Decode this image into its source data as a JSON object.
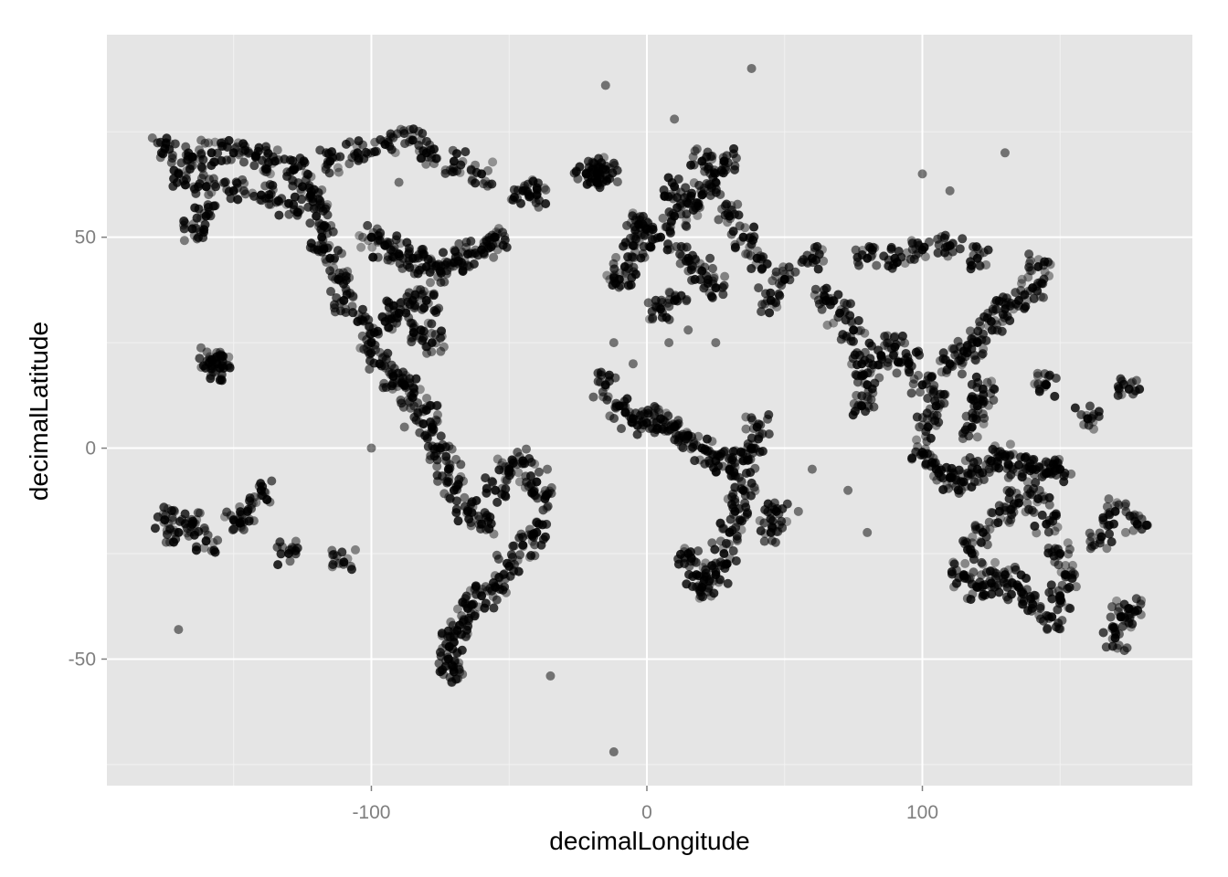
{
  "chart_data": {
    "type": "scatter",
    "title": "",
    "xlabel": "decimalLongitude",
    "ylabel": "decimalLatitude",
    "xlim": [
      -196,
      198
    ],
    "ylim": [
      -80,
      98
    ],
    "x_ticks": [
      -100,
      0,
      100
    ],
    "y_ticks": [
      -50,
      0,
      50
    ],
    "x_tick_labels": [
      "-100",
      "0",
      "100"
    ],
    "y_tick_labels": [
      "-50",
      "0",
      "50"
    ],
    "grid": true,
    "legend": "none",
    "point_color": "#000000",
    "point_alpha": 0.15,
    "colors": {
      "panel": "#e5e5e5",
      "grid_major": "#ffffff",
      "grid_minor": "#f2f2f2"
    },
    "series": [
      {
        "regions": [
          {
            "area": "north-america-west",
            "points": [
              [
                -175,
                71
              ],
              [
                -165,
                69
              ],
              [
                -158,
                70
              ],
              [
                -150,
                70
              ],
              [
                -142,
                69
              ],
              [
                -135,
                68
              ],
              [
                -128,
                66
              ],
              [
                -122,
                60
              ],
              [
                -120,
                55
              ],
              [
                -118,
                50
              ],
              [
                -115,
                45
              ],
              [
                -112,
                40
              ],
              [
                -110,
                35
              ],
              [
                -105,
                30
              ],
              [
                -100,
                25
              ],
              [
                -97,
                20
              ],
              [
                -92,
                17
              ],
              [
                -88,
                15
              ],
              [
                -85,
                12
              ],
              [
                -80,
                9
              ]
            ]
          },
          {
            "area": "north-america-east",
            "points": [
              [
                -100,
                50
              ],
              [
                -95,
                48
              ],
              [
                -90,
                46
              ],
              [
                -85,
                45
              ],
              [
                -80,
                43
              ],
              [
                -75,
                42
              ],
              [
                -70,
                44
              ],
              [
                -65,
                46
              ],
              [
                -60,
                47
              ],
              [
                -55,
                50
              ],
              [
                -85,
                35
              ],
              [
                -80,
                35
              ],
              [
                -90,
                32
              ],
              [
                -95,
                30
              ],
              [
                -82,
                28
              ],
              [
                -78,
                25
              ]
            ]
          },
          {
            "area": "alaska-and-arctic",
            "points": [
              [
                -170,
                65
              ],
              [
                -160,
                62
              ],
              [
                -150,
                61
              ],
              [
                -140,
                60
              ],
              [
                -130,
                58
              ],
              [
                -125,
                62
              ],
              [
                -115,
                68
              ],
              [
                -105,
                70
              ],
              [
                -95,
                72
              ],
              [
                -85,
                73
              ],
              [
                -80,
                70
              ],
              [
                -70,
                68
              ],
              [
                -60,
                65
              ],
              [
                -160,
                55
              ],
              [
                -165,
                52
              ]
            ]
          },
          {
            "area": "south-america",
            "points": [
              [
                -78,
                5
              ],
              [
                -75,
                0
              ],
              [
                -72,
                -5
              ],
              [
                -70,
                -10
              ],
              [
                -65,
                -15
              ],
              [
                -60,
                -18
              ],
              [
                -55,
                -10
              ],
              [
                -50,
                -5
              ],
              [
                -45,
                -3
              ],
              [
                -40,
                -8
              ],
              [
                -37,
                -12
              ],
              [
                -40,
                -20
              ],
              [
                -45,
                -23
              ],
              [
                -50,
                -28
              ],
              [
                -55,
                -33
              ],
              [
                -60,
                -35
              ],
              [
                -65,
                -38
              ],
              [
                -68,
                -42
              ],
              [
                -70,
                -46
              ],
              [
                -72,
                -50
              ],
              [
                -70,
                -53
              ]
            ]
          },
          {
            "area": "europe",
            "points": [
              [
                -10,
                40
              ],
              [
                -8,
                43
              ],
              [
                -5,
                48
              ],
              [
                -3,
                53
              ],
              [
                0,
                52
              ],
              [
                5,
                50
              ],
              [
                10,
                55
              ],
              [
                15,
                58
              ],
              [
                20,
                60
              ],
              [
                25,
                63
              ],
              [
                28,
                68
              ],
              [
                20,
                68
              ],
              [
                10,
                62
              ],
              [
                30,
                55
              ],
              [
                35,
                50
              ],
              [
                40,
                45
              ],
              [
                15,
                45
              ],
              [
                20,
                42
              ],
              [
                25,
                38
              ]
            ]
          },
          {
            "area": "africa",
            "points": [
              [
                -15,
                15
              ],
              [
                -10,
                10
              ],
              [
                -5,
                7
              ],
              [
                0,
                6
              ],
              [
                5,
                7
              ],
              [
                10,
                5
              ],
              [
                15,
                3
              ],
              [
                20,
                0
              ],
              [
                25,
                -3
              ],
              [
                30,
                -5
              ],
              [
                35,
                -3
              ],
              [
                38,
                0
              ],
              [
                40,
                5
              ],
              [
                35,
                -10
              ],
              [
                32,
                -15
              ],
              [
                30,
                -20
              ],
              [
                28,
                -25
              ],
              [
                25,
                -30
              ],
              [
                20,
                -33
              ],
              [
                18,
                -30
              ],
              [
                15,
                -25
              ],
              [
                45,
                -20
              ],
              [
                47,
                -15
              ],
              [
                5,
                33
              ],
              [
                10,
                35
              ]
            ]
          },
          {
            "area": "asia",
            "points": [
              [
                65,
                35
              ],
              [
                70,
                32
              ],
              [
                75,
                28
              ],
              [
                78,
                20
              ],
              [
                80,
                15
              ],
              [
                78,
                10
              ],
              [
                85,
                22
              ],
              [
                90,
                24
              ],
              [
                95,
                20
              ],
              [
                100,
                15
              ],
              [
                102,
                5
              ],
              [
                105,
                10
              ],
              [
                110,
                20
              ],
              [
                115,
                23
              ],
              [
                120,
                25
              ],
              [
                125,
                30
              ],
              [
                130,
                33
              ],
              [
                135,
                35
              ],
              [
                140,
                38
              ],
              [
                142,
                43
              ],
              [
                80,
                45
              ],
              [
                90,
                45
              ],
              [
                100,
                47
              ],
              [
                110,
                48
              ],
              [
                120,
                45
              ],
              [
                60,
                45
              ],
              [
                50,
                40
              ],
              [
                45,
                35
              ]
            ]
          },
          {
            "area": "southeast-asia",
            "points": [
              [
                100,
                -1
              ],
              [
                105,
                -5
              ],
              [
                110,
                -7
              ],
              [
                115,
                -8
              ],
              [
                120,
                -5
              ],
              [
                125,
                -3
              ],
              [
                130,
                -2
              ],
              [
                135,
                -4
              ],
              [
                140,
                -5
              ],
              [
                145,
                -6
              ],
              [
                150,
                -5
              ],
              [
                120,
                10
              ],
              [
                122,
                14
              ],
              [
                118,
                5
              ]
            ]
          },
          {
            "area": "australia-nz",
            "points": [
              [
                115,
                -30
              ],
              [
                118,
                -25
              ],
              [
                122,
                -20
              ],
              [
                128,
                -15
              ],
              [
                135,
                -13
              ],
              [
                142,
                -12
              ],
              [
                145,
                -18
              ],
              [
                150,
                -25
              ],
              [
                152,
                -30
              ],
              [
                150,
                -35
              ],
              [
                147,
                -40
              ],
              [
                140,
                -37
              ],
              [
                135,
                -33
              ],
              [
                130,
                -30
              ],
              [
                125,
                -32
              ],
              [
                120,
                -33
              ],
              [
                172,
                -40
              ],
              [
                170,
                -45
              ],
              [
                175,
                -38
              ]
            ]
          },
          {
            "area": "iceland-greenland",
            "points": [
              [
                -22,
                65
              ],
              [
                -20,
                64
              ],
              [
                -18,
                65
              ],
              [
                -15,
                66
              ],
              [
                -40,
                60
              ],
              [
                -45,
                61
              ]
            ]
          },
          {
            "area": "pacific-islands",
            "points": [
              [
                -158,
                21
              ],
              [
                -156,
                20
              ],
              [
                -155,
                19
              ],
              [
                -175,
                -17
              ],
              [
                -170,
                -20
              ],
              [
                -165,
                -18
              ],
              [
                -160,
                -22
              ],
              [
                -150,
                -17
              ],
              [
                -145,
                -15
              ],
              [
                -140,
                -10
              ],
              [
                -130,
                -25
              ],
              [
                -110,
                -27
              ],
              [
                178,
                -18
              ],
              [
                170,
                -15
              ],
              [
                165,
                -21
              ],
              [
                175,
                14
              ],
              [
                145,
                15
              ],
              [
                160,
                7
              ]
            ]
          },
          {
            "area": "outliers",
            "points": [
              [
                38,
                90
              ],
              [
                -15,
                86
              ],
              [
                -12,
                -72
              ],
              [
                10,
                78
              ],
              [
                -35,
                -54
              ],
              [
                -170,
                -43
              ],
              [
                -90,
                63
              ],
              [
                -100,
                0
              ],
              [
                -88,
                5
              ],
              [
                -12,
                25
              ],
              [
                -5,
                20
              ],
              [
                8,
                25
              ],
              [
                15,
                28
              ],
              [
                25,
                25
              ],
              [
                60,
                -5
              ],
              [
                55,
                -15
              ],
              [
                73,
                -10
              ],
              [
                80,
                -20
              ],
              [
                100,
                65
              ],
              [
                110,
                61
              ],
              [
                130,
                70
              ],
              [
                -100,
                70
              ]
            ]
          }
        ]
      }
    ]
  }
}
